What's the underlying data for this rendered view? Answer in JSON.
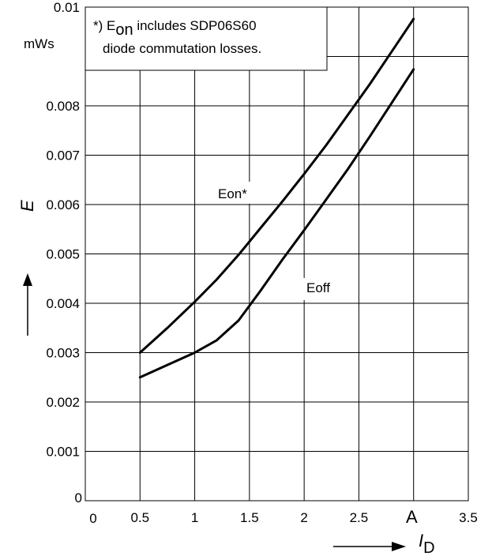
{
  "chart_data": {
    "type": "line",
    "xlabel": "I",
    "xlabel_sub": "D",
    "x_unit": "A",
    "ylabel": "E",
    "y_unit": "mWs",
    "xlim": [
      0,
      3.5
    ],
    "ylim": [
      0,
      0.01
    ],
    "xticks": [
      "0",
      "0.5",
      "1",
      "1.5",
      "2",
      "2.5",
      "3.5"
    ],
    "yticks": [
      "0",
      "0.001",
      "0.002",
      "0.003",
      "0.004",
      "0.005",
      "0.006",
      "0.007",
      "0.008",
      "0.01"
    ],
    "grid": true,
    "annotation": {
      "prefix": "*) E",
      "sub": "on",
      "line1_rest": " includes SDP06S60",
      "line2": "diode commutation losses."
    },
    "series": [
      {
        "name": "Eon*",
        "x": [
          0.5,
          0.75,
          1.0,
          1.2,
          1.4,
          1.6,
          1.8,
          2.0,
          2.2,
          2.4,
          2.6,
          2.8,
          3.0
        ],
        "y": [
          0.003,
          0.0035,
          0.00403,
          0.00448,
          0.00498,
          0.00552,
          0.00606,
          0.00662,
          0.0072,
          0.00782,
          0.00844,
          0.0091,
          0.00976
        ]
      },
      {
        "name": "Eoff",
        "x": [
          0.5,
          0.75,
          1.0,
          1.2,
          1.4,
          1.6,
          1.8,
          2.0,
          2.2,
          2.4,
          2.6,
          2.8,
          3.0
        ],
        "y": [
          0.0025,
          0.00275,
          0.003,
          0.00325,
          0.00365,
          0.00425,
          0.00488,
          0.00548,
          0.0061,
          0.00672,
          0.00738,
          0.00806,
          0.00874
        ]
      }
    ]
  }
}
